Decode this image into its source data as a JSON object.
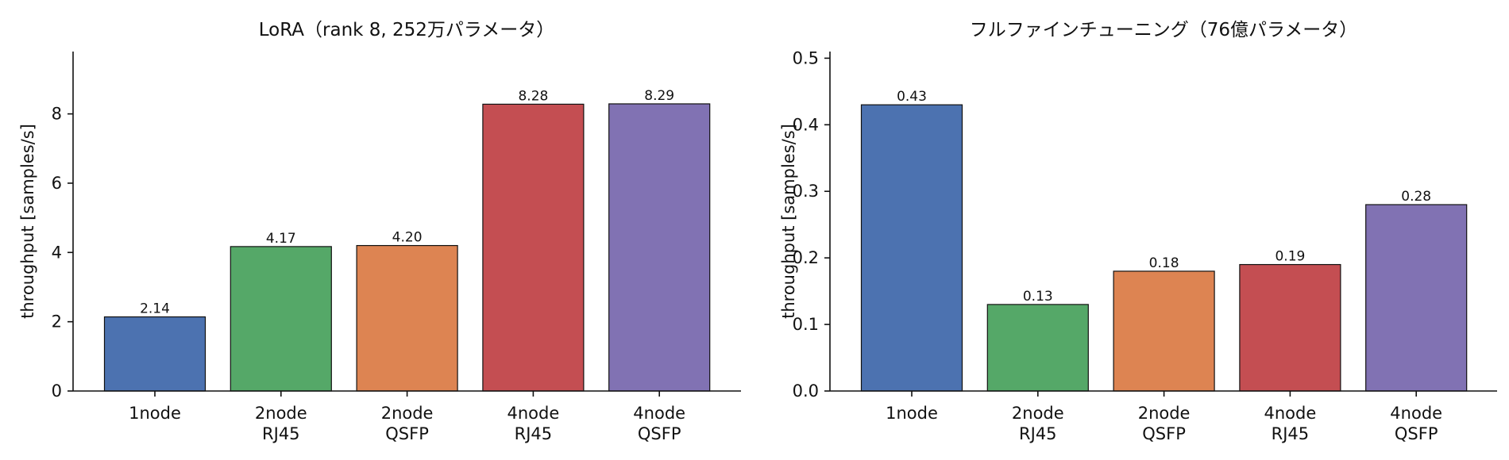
{
  "chart_data": [
    {
      "type": "bar",
      "title": "LoRA（rank 8, 252万パラメータ）",
      "ylabel": "throughput [samples/s]",
      "xlabel": "",
      "categories": [
        [
          "1node"
        ],
        [
          "2node",
          "RJ45"
        ],
        [
          "2node",
          "QSFP"
        ],
        [
          "4node",
          "RJ45"
        ],
        [
          "4node",
          "QSFP"
        ]
      ],
      "values": [
        2.14,
        4.17,
        4.2,
        8.28,
        8.29
      ],
      "value_labels": [
        "2.14",
        "4.17",
        "4.20",
        "8.28",
        "8.29"
      ],
      "colors": [
        "#4c72b0",
        "#55a868",
        "#dd8452",
        "#c44e52",
        "#8172b3"
      ],
      "ylim": [
        0,
        9.8
      ],
      "yticks": [
        0,
        2,
        4,
        6,
        8
      ],
      "ytick_labels": [
        "0",
        "2",
        "4",
        "6",
        "8"
      ],
      "grid": false,
      "legend": "none"
    },
    {
      "type": "bar",
      "title": "フルファインチューニング（76億パラメータ）",
      "ylabel": "throughput [samples/s]",
      "xlabel": "",
      "categories": [
        [
          "1node"
        ],
        [
          "2node",
          "RJ45"
        ],
        [
          "2node",
          "QSFP"
        ],
        [
          "4node",
          "RJ45"
        ],
        [
          "4node",
          "QSFP"
        ]
      ],
      "values": [
        0.43,
        0.13,
        0.18,
        0.19,
        0.28
      ],
      "value_labels": [
        "0.43",
        "0.13",
        "0.18",
        "0.19",
        "0.28"
      ],
      "colors": [
        "#4c72b0",
        "#55a868",
        "#dd8452",
        "#c44e52",
        "#8172b3"
      ],
      "ylim": [
        0,
        0.51
      ],
      "yticks": [
        0.0,
        0.1,
        0.2,
        0.3,
        0.4,
        0.5
      ],
      "ytick_labels": [
        "0.0",
        "0.1",
        "0.2",
        "0.3",
        "0.4",
        "0.5"
      ],
      "grid": false,
      "legend": "none"
    }
  ]
}
